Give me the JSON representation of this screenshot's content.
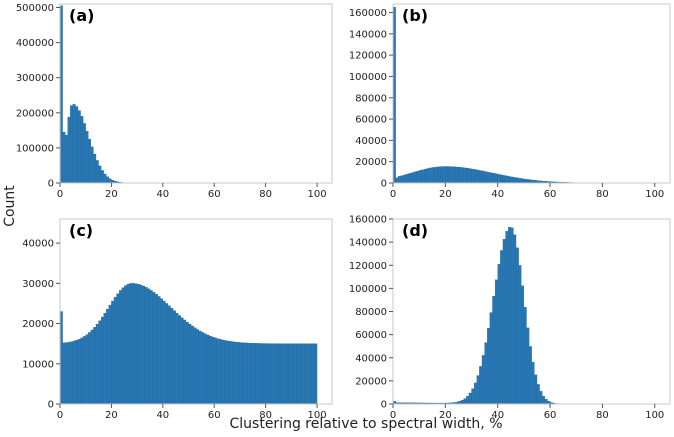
{
  "figure": {
    "xlabel": "Clustering relative to spectral width,  %",
    "ylabel": "Count",
    "bar_color": "#2878b5",
    "frame_color": "#c8c8c8"
  },
  "chart_data": [
    {
      "type": "bar",
      "label": "(a)",
      "xlim": [
        0,
        100
      ],
      "ylim": [
        0,
        510000
      ],
      "xticks": [
        0,
        20,
        40,
        60,
        80,
        100
      ],
      "yticks": [
        0,
        100000,
        200000,
        300000,
        400000,
        500000
      ],
      "bin_width": 1,
      "shape": "spike",
      "spike_values": [
        505000,
        145000
      ],
      "peak": 225000,
      "mu": 5,
      "sigma_left": 2.5,
      "sigma_right": 6,
      "baseline": 0,
      "tail": 0
    },
    {
      "type": "bar",
      "label": "(b)",
      "xlim": [
        0,
        100
      ],
      "ylim": [
        0,
        168000
      ],
      "xticks": [
        0,
        20,
        40,
        60,
        80,
        100
      ],
      "yticks": [
        0,
        20000,
        40000,
        60000,
        80000,
        100000,
        120000,
        140000,
        160000
      ],
      "bin_width": 1,
      "shape": "spike",
      "spike_values": [
        165000,
        5000
      ],
      "peak": 15500,
      "mu": 20,
      "sigma_left": 13,
      "sigma_right": 18,
      "baseline": 0,
      "tail": 0
    },
    {
      "type": "bar",
      "label": "(c)",
      "xlim": [
        0,
        100
      ],
      "ylim": [
        0,
        46000
      ],
      "xticks": [
        0,
        20,
        40,
        60,
        80,
        100
      ],
      "yticks": [
        0,
        10000,
        20000,
        30000,
        40000
      ],
      "bin_width": 1,
      "shape": "spike",
      "spike_values": [
        23000
      ],
      "peak": 30000,
      "mu": 28,
      "sigma_left": 9,
      "sigma_right": 15,
      "baseline": 15000,
      "tail": 0
    },
    {
      "type": "bar",
      "label": "(d)",
      "xlim": [
        0,
        100
      ],
      "ylim": [
        0,
        160000
      ],
      "xticks": [
        0,
        20,
        40,
        60,
        80,
        100
      ],
      "yticks": [
        0,
        20000,
        40000,
        60000,
        80000,
        100000,
        120000,
        140000,
        160000
      ],
      "bin_width": 1,
      "shape": "bell",
      "spike_values": [
        2500
      ],
      "peak": 153000,
      "mu": 45,
      "sigma_left": 6.5,
      "sigma_right": 5,
      "baseline": 0,
      "tail": 1200
    }
  ]
}
